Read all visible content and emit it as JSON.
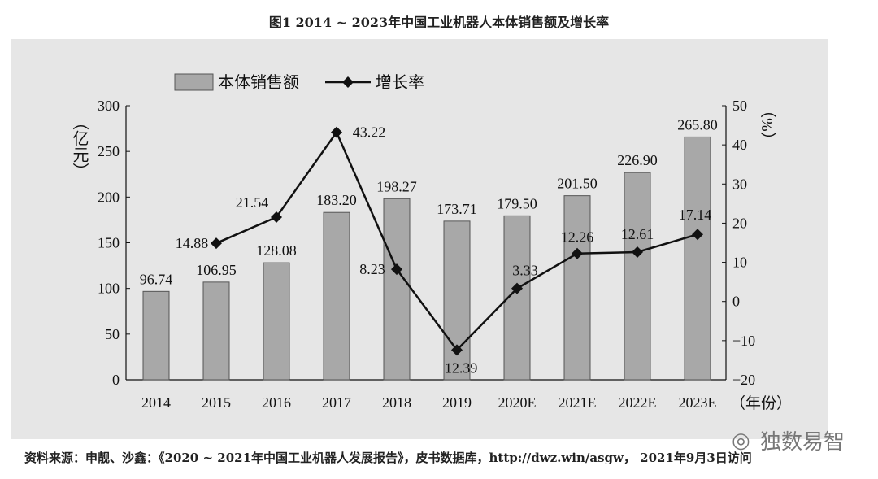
{
  "chart_data": {
    "type": "bar+line",
    "title": "图1  2014 ~ 2023年中国工业机器人本体销售额及增长率",
    "categories": [
      "2014",
      "2015",
      "2016",
      "2017",
      "2018",
      "2019",
      "2020E",
      "2021E",
      "2022E",
      "2023E"
    ],
    "series": [
      {
        "name": "本体销售额",
        "type": "bar",
        "axis": "left",
        "color": "#a8a8a8",
        "values": [
          96.74,
          106.95,
          128.08,
          183.2,
          198.27,
          173.71,
          179.5,
          201.5,
          226.9,
          265.8
        ],
        "labels": [
          "96.74",
          "106.95",
          "128.08",
          "183.20",
          "198.27",
          "173.71",
          "179.50",
          "201.50",
          "226.90",
          "265.80"
        ]
      },
      {
        "name": "增长率",
        "type": "line",
        "axis": "right",
        "color": "#111111",
        "marker": "diamond",
        "values": [
          null,
          14.88,
          21.54,
          43.22,
          8.23,
          -12.39,
          3.33,
          12.26,
          12.61,
          17.14
        ],
        "labels": [
          "",
          "14.88",
          "21.54",
          "43.22",
          "8.23",
          "−12.39",
          "3.33",
          "12.26",
          "12.61",
          "17.14"
        ]
      }
    ],
    "ylabel": "（亿元）",
    "ylabel_right": "（%）",
    "xlabel": "（年份）",
    "ylim": [
      0,
      300
    ],
    "yticks": [
      "0",
      "50",
      "100",
      "150",
      "200",
      "250",
      "300"
    ],
    "ylim_right": [
      -20,
      50
    ],
    "yticks_right": [
      "−20",
      "−10",
      "0",
      "10",
      "20",
      "30",
      "40",
      "50"
    ],
    "grid": false,
    "legend": "top-left"
  },
  "source": "资料来源：申靓、沙鑫：《2020 ~ 2021年中国工业机器人发展报告》，皮书数据库，http://dwz.win/asgw， 2021年9月3日访问",
  "watermark": "独数易智"
}
